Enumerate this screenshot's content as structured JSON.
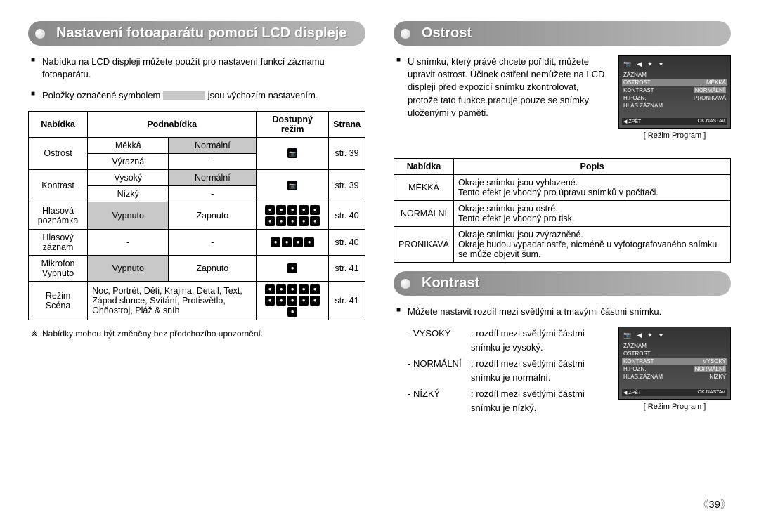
{
  "left": {
    "header": "Nastavení fotoaparátu pomocí LCD displeje",
    "p1": "Nabídku na LCD displeji můžete použít pro nastavení funkcí záznamu fotoaparátu.",
    "p2a": "Položky označené symbolem",
    "p2b": "jsou výchozím nastavením.",
    "table": {
      "head": [
        "Nabídka",
        "Podnabídka",
        "Dostupný režim",
        "Strana"
      ],
      "ostrost": {
        "label": "Ostrost",
        "r1a": "Měkká",
        "r1b": "Normální",
        "r2a": "Výrazná",
        "r2b": "-",
        "page": "str. 39"
      },
      "kontrast": {
        "label": "Kontrast",
        "r1a": "Vysoký",
        "r1b": "Normální",
        "r2a": "Nízký",
        "r2b": "-",
        "page": "str. 39"
      },
      "hlasova": {
        "label": "Hlasová poznámka",
        "a": "Vypnuto",
        "b": "Zapnuto",
        "page": "str. 40"
      },
      "hlasovy": {
        "label": "Hlasový záznam",
        "a": "-",
        "b": "-",
        "page": "str. 40"
      },
      "mikrofon": {
        "label": "Mikrofon Vypnuto",
        "a": "Vypnuto",
        "b": "Zapnuto",
        "page": "str. 41"
      },
      "scena": {
        "label": "Režim Scéna",
        "desc": "Noc, Portrét, Děti, Krajina, Detail, Text, Západ slunce, Svítání, Protisvětlo, Ohňostroj, Pláž & sníh",
        "page": "str. 41"
      }
    },
    "footnote": "Nabídky mohou být změněny bez předchozího upozornění."
  },
  "ostrost": {
    "header": "Ostrost",
    "p1": "U snímku, který právě chcete pořídit, můžete upravit ostrost. Účinek ostření nemůžete na LCD displeji před expozicí snímku zkontrolovat, protože tato funkce pracuje pouze se snímky uloženými v paměti.",
    "lcd": {
      "rows": [
        {
          "l": "ZÁZNAM",
          "r": ""
        },
        {
          "l": "OSTROST",
          "r": "MĚKKÁ"
        },
        {
          "l": "KONTRAST",
          "r": "NORMÁLNÍ"
        },
        {
          "l": "H.POZN.",
          "r": "PRONIKAVÁ"
        },
        {
          "l": "HLAS.ZÁZNAM",
          "r": ""
        }
      ],
      "foot_l": "◀  ZPĚT",
      "foot_r": "OK  NASTAV.",
      "caption": "[ Režim Program ]"
    },
    "table": {
      "head": [
        "Nabídka",
        "Popis"
      ],
      "rows": [
        {
          "k": "MĚKKÁ",
          "v": "Okraje snímku jsou vyhlazené.\nTento efekt je vhodný pro úpravu snímků v počítači."
        },
        {
          "k": "NORMÁLNÍ",
          "v": "Okraje snímku jsou ostré.\nTento efekt je vhodný pro tisk."
        },
        {
          "k": "PRONIKAVÁ",
          "v": "Okraje snímku jsou zvýrazněné.\nOkraje budou vypadat ostře, nicméně u vyfotografovaného snímku se může objevit šum."
        }
      ]
    }
  },
  "kontrast": {
    "header": "Kontrast",
    "p1": "Můžete nastavit rozdíl mezi světlými a tmavými částmi snímku.",
    "defs": [
      {
        "t": "- VYSOKÝ",
        "d": ": rozdíl mezi světlými částmi snímku je vysoký."
      },
      {
        "t": "- NORMÁLNÍ",
        "d": ": rozdíl mezi světlými částmi snímku je normální."
      },
      {
        "t": "- NÍZKÝ",
        "d": ": rozdíl mezi světlými částmi snímku je nízký."
      }
    ],
    "lcd": {
      "rows": [
        {
          "l": "ZÁZNAM",
          "r": ""
        },
        {
          "l": "OSTROST",
          "r": ""
        },
        {
          "l": "KONTRAST",
          "r": "VYSOKÝ"
        },
        {
          "l": "H.POZN.",
          "r": "NORMÁLNÍ"
        },
        {
          "l": "HLAS.ZÁZNAM",
          "r": "NÍZKÝ"
        }
      ],
      "foot_l": "◀  ZPĚT",
      "foot_r": "OK  NASTAV.",
      "caption": "[ Režim Program ]"
    }
  },
  "page_number": "39"
}
